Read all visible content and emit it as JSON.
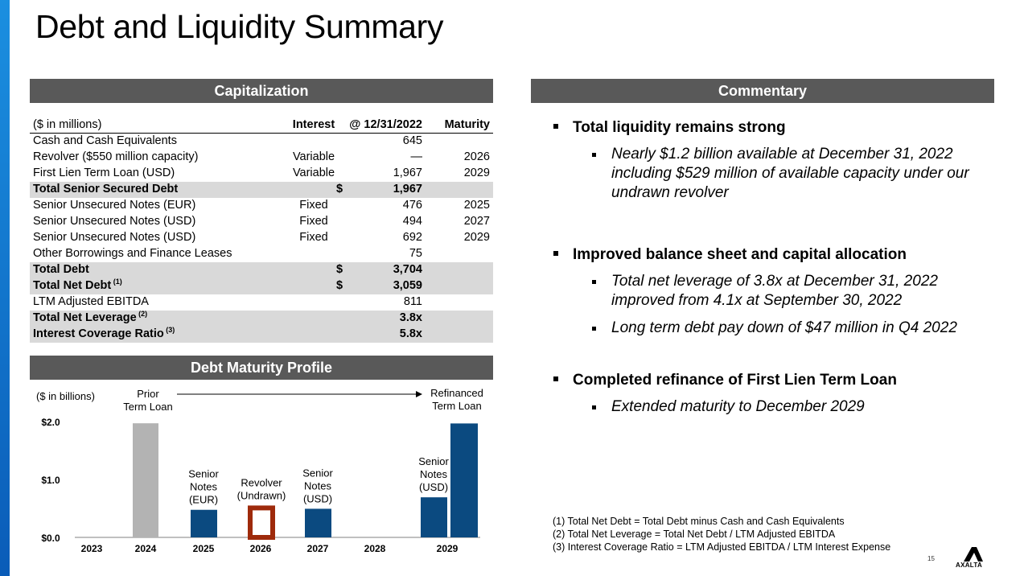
{
  "title": "Debt and Liquidity Summary",
  "capitalization": {
    "header": "Capitalization",
    "columns": {
      "name": "($ in millions)",
      "interest": "Interest",
      "value": "@ 12/31/2022",
      "maturity": "Maturity"
    },
    "rows": [
      {
        "name": "Cash and Cash Equivalents",
        "interest": "",
        "dollar": "",
        "value": "645",
        "maturity": "",
        "shaded": false
      },
      {
        "name": "Revolver ($550 million capacity)",
        "interest": "Variable",
        "dollar": "",
        "value": "—",
        "maturity": "2026",
        "shaded": false
      },
      {
        "name": "First Lien Term Loan (USD)",
        "interest": "Variable",
        "dollar": "",
        "value": "1,967",
        "maturity": "2029",
        "shaded": false
      },
      {
        "name": "Total Senior Secured Debt",
        "interest": "",
        "dollar": "$",
        "value": "1,967",
        "maturity": "",
        "shaded": true
      },
      {
        "name": "Senior Unsecured Notes (EUR)",
        "interest": "Fixed",
        "dollar": "",
        "value": "476",
        "maturity": "2025",
        "shaded": false
      },
      {
        "name": "Senior Unsecured Notes (USD)",
        "interest": "Fixed",
        "dollar": "",
        "value": "494",
        "maturity": "2027",
        "shaded": false
      },
      {
        "name": "Senior Unsecured Notes (USD)",
        "interest": "Fixed",
        "dollar": "",
        "value": "692",
        "maturity": "2029",
        "shaded": false
      },
      {
        "name": "Other Borrowings and Finance Leases",
        "interest": "",
        "dollar": "",
        "value": "75",
        "maturity": "",
        "shaded": false
      },
      {
        "name": "Total Debt",
        "interest": "",
        "dollar": "$",
        "value": "3,704",
        "maturity": "",
        "shaded": true
      },
      {
        "name": "Total Net Debt",
        "sup": "(1)",
        "interest": "",
        "dollar": "$",
        "value": "3,059",
        "maturity": "",
        "shaded": true
      },
      {
        "name": "LTM Adjusted EBITDA",
        "interest": "",
        "dollar": "",
        "value": "811",
        "maturity": "",
        "shaded": false
      },
      {
        "name": "Total Net Leverage",
        "sup": "(2)",
        "interest": "",
        "dollar": "",
        "value": "3.8x",
        "maturity": "",
        "shaded": true
      },
      {
        "name": "Interest Coverage Ratio",
        "sup": "(3)",
        "interest": "",
        "dollar": "",
        "value": "5.8x",
        "maturity": "",
        "shaded": true
      }
    ]
  },
  "maturity_profile": {
    "header": "Debt Maturity Profile",
    "unit_label": "($ in billions)",
    "prior_label": [
      "Prior",
      "Term Loan"
    ],
    "refinanced_label": [
      "Refinanced",
      "Term Loan"
    ],
    "colors": {
      "prior": "#b3b3b3",
      "notes": "#0b4a80",
      "revolver": "#9e2a0b"
    }
  },
  "chart_data": {
    "type": "bar",
    "categories": [
      "2023",
      "2024",
      "2025",
      "2026",
      "2027",
      "2028",
      "2029"
    ],
    "ylim": [
      0,
      2.0
    ],
    "yticks": [
      "$0.0",
      "$1.0",
      "$2.0"
    ],
    "bars": [
      {
        "category": "2024",
        "value": 1.97,
        "kind": "prior",
        "label": []
      },
      {
        "category": "2025",
        "value": 0.476,
        "kind": "notes",
        "label": [
          "Senior",
          "Notes",
          "(EUR)"
        ]
      },
      {
        "category": "2026",
        "value": 0.55,
        "kind": "revolver",
        "label": [
          "Revolver",
          "(Undrawn)"
        ]
      },
      {
        "category": "2027",
        "value": 0.494,
        "kind": "notes",
        "label": [
          "Senior",
          "Notes",
          "(USD)"
        ]
      },
      {
        "category": "2029",
        "value": 0.692,
        "kind": "notes",
        "label": [
          "Senior",
          "Notes",
          "(USD)"
        ]
      },
      {
        "category": "2029",
        "value": 1.967,
        "kind": "notes",
        "label": []
      }
    ]
  },
  "commentary": {
    "header": "Commentary",
    "bullets": [
      {
        "text": "Total liquidity remains strong",
        "subs": [
          "Nearly $1.2 billion available at December 31, 2022 including $529 million of available capacity under our undrawn revolver"
        ]
      },
      {
        "text": "Improved balance sheet and capital allocation",
        "subs": [
          "Total net leverage of 3.8x at December 31, 2022 improved from 4.1x at September 30, 2022",
          "Long term debt pay down of $47 million in Q4 2022"
        ]
      },
      {
        "text": "Completed refinance of First Lien Term Loan",
        "subs": [
          "Extended maturity to December 2029"
        ]
      }
    ]
  },
  "footnotes": [
    "(1) Total Net Debt = Total Debt minus Cash and Cash Equivalents",
    "(2) Total Net Leverage = Total Net Debt / LTM Adjusted EBITDA",
    "(3) Interest Coverage Ratio = LTM Adjusted EBITDA / LTM Interest Expense"
  ],
  "page_number": "15",
  "logo_text": "AXALTA"
}
